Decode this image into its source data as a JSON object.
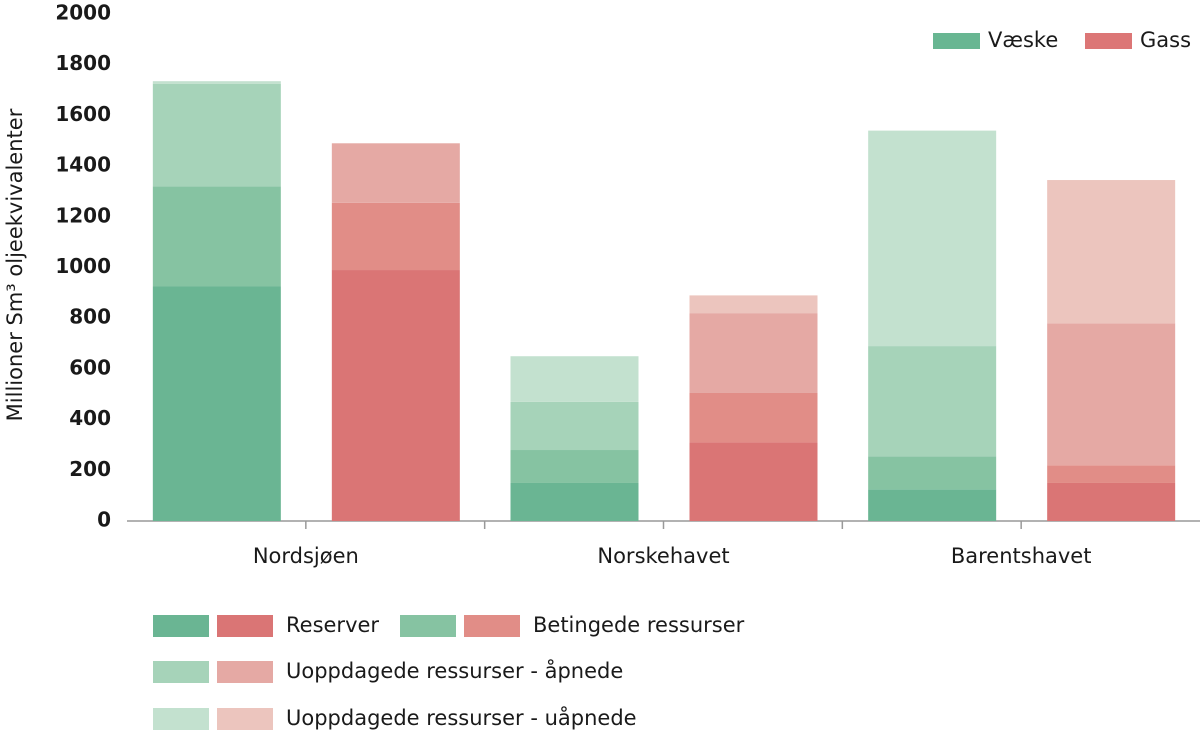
{
  "chart_data": {
    "type": "grouped-stacked-bar",
    "y_label": "Millioner Sm³ oljeekvivalenter",
    "categories": [
      "Nordsjøen",
      "Norskehavet",
      "Barentshavet"
    ],
    "fluids": [
      {
        "name": "Væske",
        "color": "#68b692"
      },
      {
        "name": "Gass",
        "color": "#dc7676"
      }
    ],
    "series": [
      {
        "name": "Reserver",
        "colors": [
          "#6ab593",
          "#da7575"
        ],
        "values": [
          [
            925,
            990
          ],
          [
            150,
            310
          ],
          [
            125,
            150
          ]
        ]
      },
      {
        "name": "Betingede ressurser",
        "colors": [
          "#86c3a2",
          "#e18d87"
        ],
        "values": [
          [
            395,
            265
          ],
          [
            130,
            195
          ],
          [
            130,
            70
          ]
        ]
      },
      {
        "name": "Uoppdagede ressurser - åpnede",
        "colors": [
          "#a6d3b9",
          "#e5a9a4"
        ],
        "values": [
          [
            405,
            235
          ],
          [
            190,
            315
          ],
          [
            435,
            560
          ]
        ]
      },
      {
        "name": "Uoppdagede ressurser - uåpnede",
        "colors": [
          "#c3e1cf",
          "#ecc5be"
        ],
        "values": [
          [
            10,
            0
          ],
          [
            180,
            70
          ],
          [
            850,
            565
          ]
        ]
      }
    ],
    "ylim": [
      0,
      2000
    ],
    "yticks": [
      0,
      200,
      400,
      600,
      800,
      1000,
      1200,
      1400,
      1600,
      1800,
      2000
    ],
    "grid": false
  }
}
